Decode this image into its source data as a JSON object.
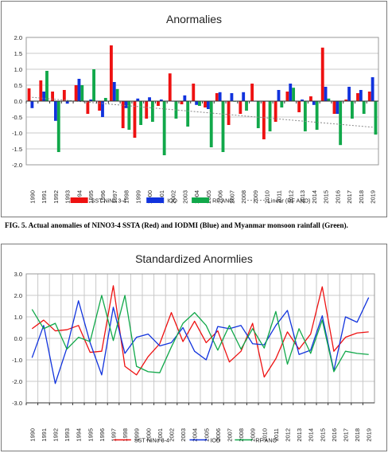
{
  "caption": "FIG. 5. Actual anomalies of NINO3-4 SSTA (Red) and IODMI (Blue) and Myanmar monsoon rainfall (Green).",
  "colors": {
    "sst": "#ee1111",
    "iod": "#1133dd",
    "rf": "#11a84a",
    "trend": "#888888",
    "grid": "#c8c8c8",
    "border": "#7a7a7a"
  },
  "chart_data": [
    {
      "type": "bar",
      "title": "Anormalies",
      "categories": [
        "1990",
        "1991",
        "1992",
        "1993",
        "1994",
        "1995",
        "1996",
        "1997",
        "1998",
        "1999",
        "2000",
        "2001",
        "2002",
        "2003",
        "2004",
        "2005",
        "2006",
        "2007",
        "2008",
        "2009",
        "2010",
        "2011",
        "2012",
        "2013",
        "2014",
        "2015",
        "2016",
        "2017",
        "2018",
        "2019"
      ],
      "ylim": [
        -2.0,
        2.0
      ],
      "yticks": [
        "2.0",
        "1.5",
        "1.0",
        "0.5",
        "0.0",
        "-0.5",
        "-1.0",
        "-1.5",
        "-2.0"
      ],
      "series": [
        {
          "name": "SST NiNo 3-4",
          "values": [
            0.4,
            0.65,
            0.3,
            0.35,
            0.5,
            -0.4,
            -0.3,
            1.75,
            -0.85,
            -1.15,
            -0.55,
            -0.15,
            0.87,
            -0.1,
            0.55,
            -0.2,
            0.25,
            -0.75,
            -0.4,
            0.55,
            -1.2,
            -0.65,
            0.3,
            -0.35,
            0.15,
            1.68,
            -0.4,
            0.05,
            0.25,
            0.3
          ]
        },
        {
          "name": "IOD",
          "values": [
            -0.22,
            0.3,
            -0.62,
            -0.08,
            0.7,
            0.05,
            -0.5,
            0.6,
            -0.22,
            0.08,
            0.12,
            0.05,
            0.0,
            0.18,
            -0.12,
            -0.25,
            0.28,
            0.25,
            0.28,
            0.0,
            0.0,
            0.35,
            0.55,
            0.05,
            -0.12,
            0.45,
            -0.4,
            0.45,
            0.35,
            0.75
          ]
        },
        {
          "name": "RF ANO",
          "values": [
            0.0,
            0.95,
            -1.6,
            0.02,
            0.5,
            1.0,
            0.1,
            0.38,
            -0.9,
            -0.75,
            -0.65,
            -1.7,
            -0.55,
            -0.8,
            -0.15,
            -1.45,
            -1.6,
            -0.02,
            -0.3,
            -0.85,
            -0.95,
            -0.2,
            0.42,
            -0.95,
            -0.9,
            0.08,
            -1.38,
            -0.55,
            -0.4,
            -1.05
          ]
        }
      ],
      "trend": {
        "name": "Linear (RF ANO)",
        "start": 0.12,
        "end": -0.82
      },
      "legend": "bottom"
    },
    {
      "type": "line",
      "title": "Standardized Anormlies",
      "categories": [
        "1990",
        "1991",
        "1992",
        "1993",
        "1994",
        "1995",
        "1996",
        "1997",
        "1998",
        "1999",
        "2000",
        "2001",
        "2002",
        "2003",
        "2004",
        "2005",
        "2006",
        "2007",
        "2008",
        "2009",
        "2010",
        "2011",
        "2012",
        "2013",
        "2014",
        "2015",
        "2016",
        "2017",
        "2018",
        "2019"
      ],
      "ylim": [
        -3.0,
        3.0
      ],
      "yticks": [
        "3.0",
        "2.0",
        "1.0",
        "0.0",
        "-1.0",
        "-2.0",
        "-3.0"
      ],
      "series": [
        {
          "name": "SST NiNo 3-4",
          "values": [
            0.45,
            0.85,
            0.35,
            0.4,
            0.6,
            -0.65,
            -0.6,
            2.45,
            -1.3,
            -1.7,
            -0.85,
            -0.25,
            1.2,
            -0.15,
            0.8,
            -0.2,
            0.35,
            -1.1,
            -0.6,
            0.7,
            -1.8,
            -0.95,
            0.3,
            -0.5,
            0.2,
            2.4,
            -0.6,
            0.05,
            0.25,
            0.3
          ]
        },
        {
          "name": "IOD",
          "values": [
            -0.9,
            0.6,
            -2.1,
            -0.45,
            1.75,
            -0.2,
            -1.7,
            1.45,
            -0.7,
            0.05,
            0.2,
            -0.35,
            -0.2,
            0.5,
            -0.6,
            -1.0,
            0.55,
            0.45,
            0.6,
            -0.25,
            -0.3,
            0.6,
            1.3,
            -0.75,
            -0.55,
            1.05,
            -1.5,
            1.0,
            0.75,
            1.9
          ]
        },
        {
          "name": "RF ANO",
          "values": [
            1.35,
            0.45,
            0.7,
            -0.5,
            0.05,
            -0.15,
            2.0,
            -0.1,
            2.0,
            -1.3,
            -1.55,
            -1.6,
            -0.4,
            0.7,
            1.2,
            0.6,
            -0.55,
            0.6,
            -0.5,
            0.45,
            -0.45,
            1.25,
            -1.2,
            0.45,
            -0.7,
            0.85,
            -1.55,
            -0.6,
            -0.7,
            -0.75
          ]
        }
      ],
      "legend": "bottom"
    }
  ]
}
